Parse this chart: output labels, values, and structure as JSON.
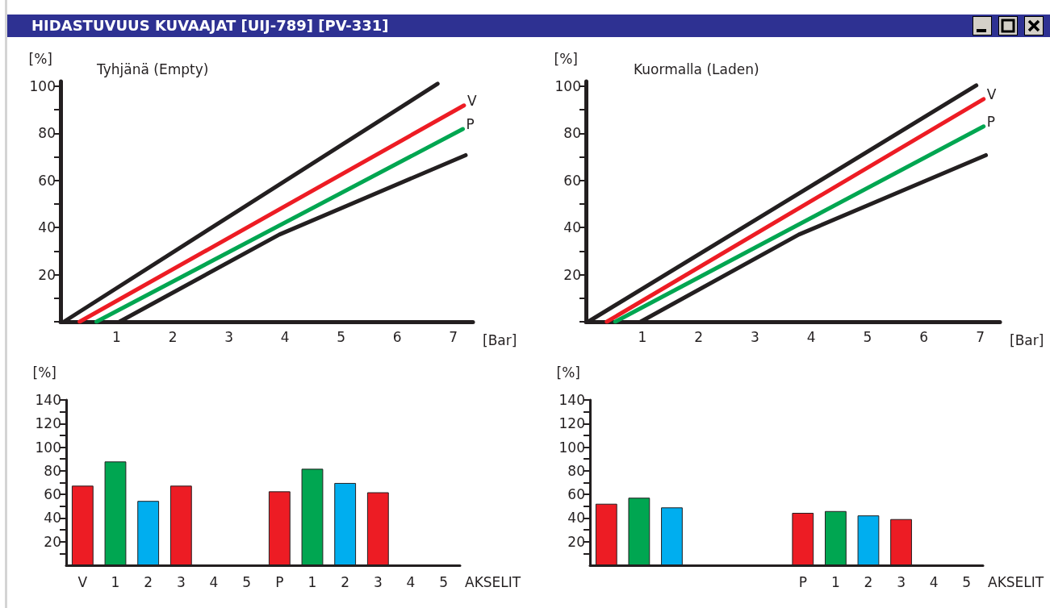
{
  "chart_data": [
    {
      "type": "line",
      "title": "HIDASTUVUUS KUVAAJAT [UIJ-789] [PV-331]",
      "subtitle": "Tyhjänä (Empty)",
      "xlabel": "[Bar]",
      "ylabel": "[%]",
      "marker": "none",
      "xlim": [
        0,
        7.35
      ],
      "ylim": [
        0,
        102
      ],
      "xticks": [
        1,
        2,
        3,
        4,
        5,
        6,
        7
      ],
      "yticks": [
        {
          "value": 0,
          "label": null
        },
        {
          "value": 10,
          "label": null
        },
        20,
        {
          "value": 30,
          "label": null
        },
        40,
        {
          "value": 50,
          "label": null
        },
        60,
        {
          "value": 70,
          "label": null
        },
        80,
        {
          "value": 90,
          "label": null
        },
        100
      ],
      "series": [
        {
          "color": "#231f20",
          "x": [
            0.06,
            6.72
          ],
          "values": [
            0,
            101
          ]
        },
        {
          "name": "V",
          "color": "#ed1c24",
          "x": [
            0.34,
            7.19
          ],
          "values": [
            0,
            91.8
          ]
        },
        {
          "name": "P",
          "color": "#00a651",
          "x": [
            0.64,
            7.17
          ],
          "values": [
            0,
            81.8
          ]
        },
        {
          "color": "#231f20",
          "x": [
            1.05,
            3.9,
            7.22
          ],
          "values": [
            0,
            37,
            70.7
          ]
        }
      ]
    },
    {
      "type": "line",
      "subtitle": "Kuormalla (Laden)",
      "xlabel": "[Bar]",
      "ylabel": "[%]",
      "marker": "none",
      "xlim": [
        0,
        7.35
      ],
      "ylim": [
        0,
        102
      ],
      "xticks": [
        1,
        2,
        3,
        4,
        5,
        6,
        7
      ],
      "yticks": [
        {
          "value": 0,
          "label": null
        },
        {
          "value": 10,
          "label": null
        },
        20,
        {
          "value": 30,
          "label": null
        },
        40,
        {
          "value": 50,
          "label": null
        },
        60,
        {
          "value": 70,
          "label": null
        },
        80,
        {
          "value": 90,
          "label": null
        },
        100
      ],
      "series": [
        {
          "color": "#231f20",
          "x": [
            0.04,
            6.93
          ],
          "values": [
            0,
            100.3
          ]
        },
        {
          "name": "V",
          "color": "#ed1c24",
          "x": [
            0.37,
            7.06
          ],
          "values": [
            0,
            94.5
          ]
        },
        {
          "name": "P",
          "color": "#00a651",
          "x": [
            0.52,
            7.06
          ],
          "values": [
            0,
            82.9
          ]
        },
        {
          "color": "#231f20",
          "x": [
            0.97,
            3.78,
            7.1
          ],
          "values": [
            0,
            37,
            70.7
          ]
        }
      ]
    },
    {
      "type": "bar",
      "xlabel": "AKSELIT",
      "ylabel": "[%]",
      "categories": [
        "V",
        "1",
        "2",
        "3",
        "4",
        "5",
        "P",
        "1",
        "2",
        "3",
        "4",
        "5"
      ],
      "values": [
        67.4,
        87.9,
        54.5,
        67.4,
        null,
        null,
        62.6,
        81.7,
        69.7,
        61.8,
        null,
        null
      ],
      "colors": [
        "#ed1c24",
        "#00a651",
        "#00aeef",
        "#ed1c24",
        null,
        null,
        "#ed1c24",
        "#00a651",
        "#00aeef",
        "#ed1c24",
        null,
        null
      ],
      "ylim": [
        0,
        140
      ],
      "yticks": [
        {
          "value": 10,
          "label": null
        },
        20,
        {
          "value": 30,
          "label": null
        },
        40,
        {
          "value": 50,
          "label": null
        },
        60,
        {
          "value": 70,
          "label": null
        },
        80,
        {
          "value": 90,
          "label": null
        },
        100,
        {
          "value": 110,
          "label": null
        },
        120,
        {
          "value": 130,
          "label": null
        },
        140
      ]
    },
    {
      "type": "bar",
      "xlabel": "AKSELIT",
      "ylabel": "[%]",
      "categories": [
        null,
        null,
        null,
        null,
        null,
        null,
        "P",
        "1",
        "2",
        "3",
        "4",
        "5"
      ],
      "values": [
        52.1,
        57.2,
        49,
        null,
        null,
        null,
        44.4,
        45.9,
        42.2,
        39.1,
        null,
        null
      ],
      "colors": [
        "#ed1c24",
        "#00a651",
        "#00aeef",
        null,
        null,
        null,
        "#ed1c24",
        "#00a651",
        "#00aeef",
        "#ed1c24",
        null,
        null
      ],
      "ylim": [
        0,
        140
      ],
      "yticks": [
        {
          "value": 10,
          "label": null
        },
        20,
        {
          "value": 30,
          "label": null
        },
        40,
        {
          "value": 50,
          "label": null
        },
        60,
        {
          "value": 70,
          "label": null
        },
        80,
        {
          "value": 90,
          "label": null
        },
        100,
        {
          "value": 110,
          "label": null
        },
        120,
        {
          "value": 130,
          "label": null
        },
        140
      ]
    }
  ]
}
